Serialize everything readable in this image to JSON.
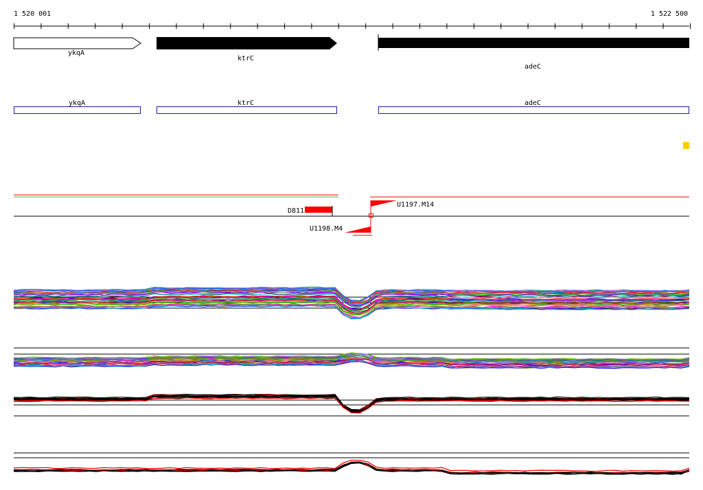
{
  "coordinates": {
    "start_label": "1 520 001",
    "end_label": "1 522 500"
  },
  "genes": [
    {
      "name": "ykqA",
      "strand": "+",
      "style": "outline"
    },
    {
      "name": "ktrC",
      "strand": "+",
      "style": "filled"
    },
    {
      "name": "adeC",
      "strand": "+",
      "style": "filled"
    }
  ],
  "features": [
    {
      "name": "ykqA"
    },
    {
      "name": "ktrC"
    },
    {
      "name": "adeC"
    }
  ],
  "probes": [
    {
      "name": "D811",
      "strand": "+"
    },
    {
      "name": "U1197.M14",
      "strand": "+"
    },
    {
      "name": "U1198.M4",
      "strand": "-"
    }
  ],
  "colors": {
    "gene_fill": "#000000",
    "feature_outline": "#1a1aa6",
    "probe_red": "#ff0000",
    "marker_yellow": "#ffcc00",
    "profile_palette": [
      "#ff0000",
      "#00aa00",
      "#0000ff",
      "#ff00ff",
      "#00cccc",
      "#ff8800",
      "#8800ff",
      "#888800",
      "#008888",
      "#aa0044",
      "#44aa00",
      "#0066ff",
      "#ff4488",
      "#66cc00",
      "#aa66ff"
    ]
  }
}
